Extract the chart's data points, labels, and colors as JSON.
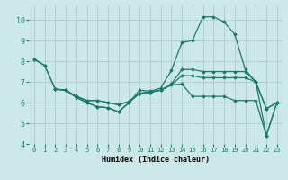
{
  "xlabel": "Humidex (Indice chaleur)",
  "bg_color": "#cce8e8",
  "grid_color": "#aacccc",
  "line_color": "#1a7a6e",
  "xlim": [
    -0.5,
    23.5
  ],
  "ylim": [
    4.0,
    10.7
  ],
  "yticks": [
    4,
    5,
    6,
    7,
    8,
    9,
    10
  ],
  "xticks": [
    0,
    1,
    2,
    3,
    4,
    5,
    6,
    7,
    8,
    9,
    10,
    11,
    12,
    13,
    14,
    15,
    16,
    17,
    18,
    19,
    20,
    21,
    22,
    23
  ],
  "lines": [
    {
      "x": [
        0,
        1,
        2,
        3,
        4,
        5,
        6,
        7,
        8,
        9,
        10,
        11,
        12,
        13,
        14,
        15,
        16,
        17,
        18,
        19,
        20,
        21,
        22,
        23
      ],
      "y": [
        8.1,
        7.8,
        6.65,
        6.6,
        6.25,
        6.0,
        5.8,
        5.75,
        5.55,
        6.0,
        6.6,
        6.55,
        6.7,
        7.55,
        8.9,
        9.0,
        10.15,
        10.15,
        9.9,
        9.3,
        7.6,
        7.0,
        4.4,
        6.0
      ]
    },
    {
      "x": [
        0,
        1,
        2,
        3,
        4,
        5,
        6,
        7,
        8,
        9,
        10,
        11,
        12,
        13,
        14,
        15,
        16,
        17,
        18,
        19,
        20,
        21,
        22,
        23
      ],
      "y": [
        8.1,
        7.8,
        6.65,
        6.6,
        6.25,
        6.0,
        5.8,
        5.75,
        5.55,
        6.0,
        6.45,
        6.5,
        6.6,
        6.9,
        7.6,
        7.6,
        7.5,
        7.5,
        7.5,
        7.5,
        7.5,
        7.0,
        5.7,
        6.0
      ]
    },
    {
      "x": [
        2,
        3,
        4,
        5,
        6,
        7,
        8,
        9,
        10,
        11,
        12,
        13,
        14,
        15,
        16,
        17,
        18,
        19,
        20,
        21,
        22,
        23
      ],
      "y": [
        6.65,
        6.6,
        6.3,
        6.1,
        6.1,
        6.0,
        5.9,
        6.05,
        6.45,
        6.5,
        6.6,
        6.85,
        7.3,
        7.3,
        7.2,
        7.2,
        7.2,
        7.2,
        7.2,
        7.0,
        5.7,
        6.0
      ]
    },
    {
      "x": [
        2,
        3,
        4,
        5,
        6,
        7,
        8,
        9,
        10,
        11,
        12,
        13,
        14,
        15,
        16,
        17,
        18,
        19,
        20,
        21,
        22,
        23
      ],
      "y": [
        6.65,
        6.6,
        6.3,
        6.1,
        6.1,
        6.0,
        5.9,
        6.05,
        6.45,
        6.5,
        6.6,
        6.85,
        6.9,
        6.3,
        6.3,
        6.3,
        6.3,
        6.1,
        6.1,
        6.1,
        4.4,
        6.0
      ]
    }
  ]
}
